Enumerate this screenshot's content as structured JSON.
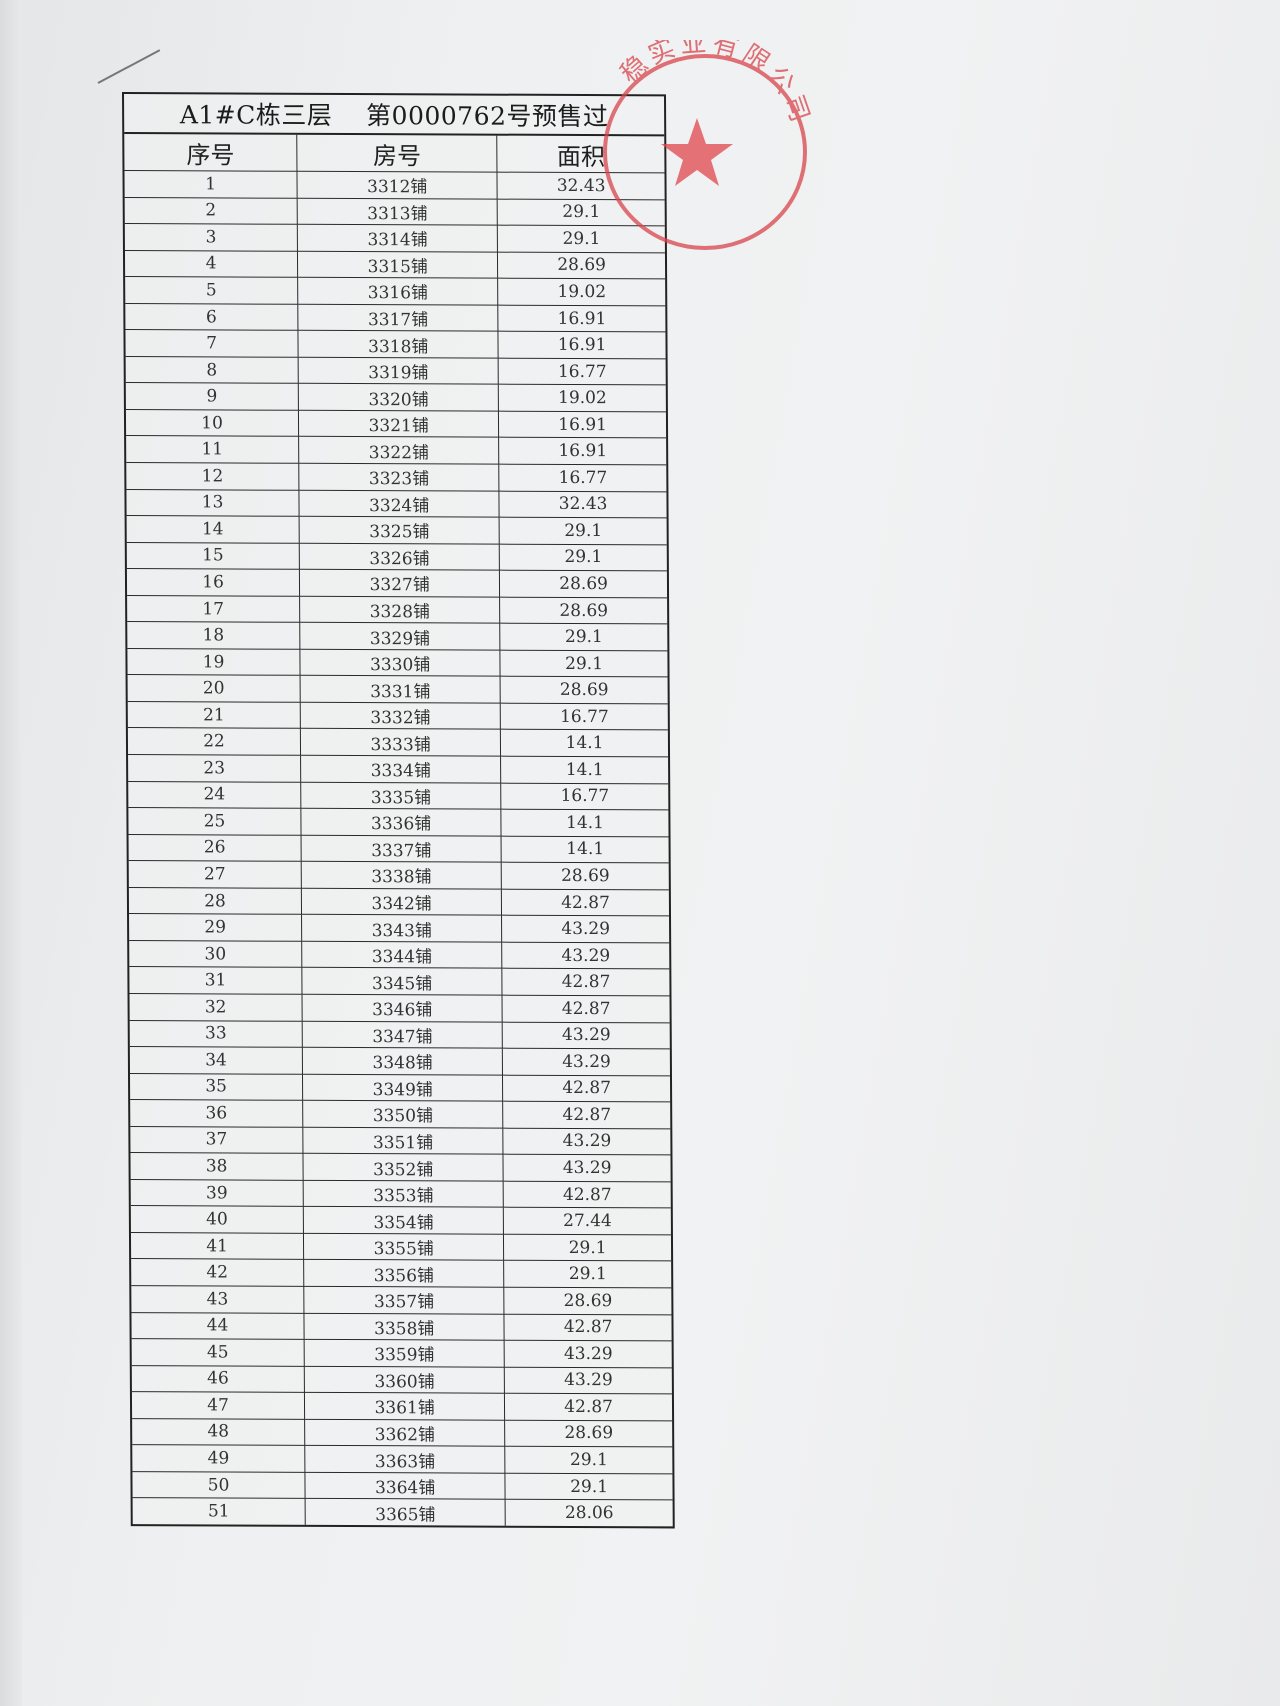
{
  "document": {
    "title": "A1#C栋三层    第0000762号预售过",
    "columns": [
      "序号",
      "房号",
      "面积"
    ],
    "rows": [
      [
        "1",
        "3312铺",
        "32.43"
      ],
      [
        "2",
        "3313铺",
        "29.1"
      ],
      [
        "3",
        "3314铺",
        "29.1"
      ],
      [
        "4",
        "3315铺",
        "28.69"
      ],
      [
        "5",
        "3316铺",
        "19.02"
      ],
      [
        "6",
        "3317铺",
        "16.91"
      ],
      [
        "7",
        "3318铺",
        "16.91"
      ],
      [
        "8",
        "3319铺",
        "16.77"
      ],
      [
        "9",
        "3320铺",
        "19.02"
      ],
      [
        "10",
        "3321铺",
        "16.91"
      ],
      [
        "11",
        "3322铺",
        "16.91"
      ],
      [
        "12",
        "3323铺",
        "16.77"
      ],
      [
        "13",
        "3324铺",
        "32.43"
      ],
      [
        "14",
        "3325铺",
        "29.1"
      ],
      [
        "15",
        "3326铺",
        "29.1"
      ],
      [
        "16",
        "3327铺",
        "28.69"
      ],
      [
        "17",
        "3328铺",
        "28.69"
      ],
      [
        "18",
        "3329铺",
        "29.1"
      ],
      [
        "19",
        "3330铺",
        "29.1"
      ],
      [
        "20",
        "3331铺",
        "28.69"
      ],
      [
        "21",
        "3332铺",
        "16.77"
      ],
      [
        "22",
        "3333铺",
        "14.1"
      ],
      [
        "23",
        "3334铺",
        "14.1"
      ],
      [
        "24",
        "3335铺",
        "16.77"
      ],
      [
        "25",
        "3336铺",
        "14.1"
      ],
      [
        "26",
        "3337铺",
        "14.1"
      ],
      [
        "27",
        "3338铺",
        "28.69"
      ],
      [
        "28",
        "3342铺",
        "42.87"
      ],
      [
        "29",
        "3343铺",
        "43.29"
      ],
      [
        "30",
        "3344铺",
        "43.29"
      ],
      [
        "31",
        "3345铺",
        "42.87"
      ],
      [
        "32",
        "3346铺",
        "42.87"
      ],
      [
        "33",
        "3347铺",
        "43.29"
      ],
      [
        "34",
        "3348铺",
        "43.29"
      ],
      [
        "35",
        "3349铺",
        "42.87"
      ],
      [
        "36",
        "3350铺",
        "42.87"
      ],
      [
        "37",
        "3351铺",
        "43.29"
      ],
      [
        "38",
        "3352铺",
        "43.29"
      ],
      [
        "39",
        "3353铺",
        "42.87"
      ],
      [
        "40",
        "3354铺",
        "27.44"
      ],
      [
        "41",
        "3355铺",
        "29.1"
      ],
      [
        "42",
        "3356铺",
        "29.1"
      ],
      [
        "43",
        "3357铺",
        "28.69"
      ],
      [
        "44",
        "3358铺",
        "42.87"
      ],
      [
        "45",
        "3359铺",
        "43.29"
      ],
      [
        "46",
        "3360铺",
        "43.29"
      ],
      [
        "47",
        "3361铺",
        "42.87"
      ],
      [
        "48",
        "3362铺",
        "28.69"
      ],
      [
        "49",
        "3363铺",
        "29.1"
      ],
      [
        "50",
        "3364铺",
        "29.1"
      ],
      [
        "51",
        "3365铺",
        "28.06"
      ]
    ]
  },
  "stamp": {
    "text": "稳实业有限公司",
    "color": "#d9444a",
    "icon": "star-icon"
  }
}
